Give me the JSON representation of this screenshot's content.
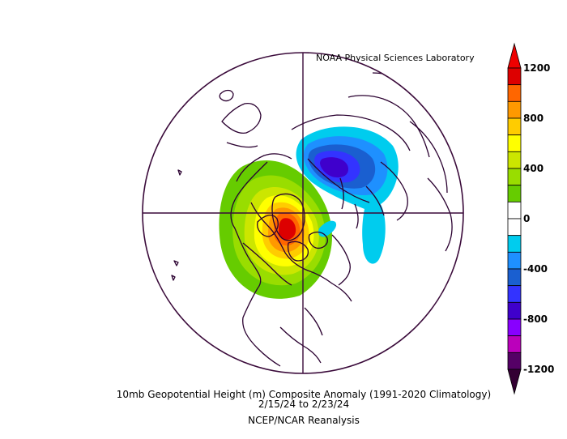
{
  "credit": "NOAA Physical Sciences Laboratory",
  "caption": {
    "line1": "10mb Geopotential Height (m) Composite Anomaly (1991-2020 Climatology)",
    "line2": "2/15/24   to 2/23/24",
    "line3": "NCEP/NCAR Reanalysis"
  },
  "colorbar": {
    "labels": [
      "1200",
      "800",
      "400",
      "0",
      "-400",
      "-800",
      "-1200"
    ],
    "bins": [
      {
        "upper": 1200,
        "color": "#dd0000"
      },
      {
        "upper": 1000,
        "color": "#ff6600"
      },
      {
        "upper": 900,
        "color": "#ff9900"
      },
      {
        "upper": 800,
        "color": "#ffcc00"
      },
      {
        "upper": 700,
        "color": "#ffff00"
      },
      {
        "upper": 600,
        "color": "#cce600"
      },
      {
        "upper": 500,
        "color": "#99dd00"
      },
      {
        "upper": 400,
        "color": "#66cc00"
      },
      {
        "upper": 200,
        "color": "#ffffff"
      },
      {
        "upper": 0,
        "color": "#ffffff"
      },
      {
        "upper": -200,
        "color": "#00ccee"
      },
      {
        "upper": -400,
        "color": "#1e90ff"
      },
      {
        "upper": -500,
        "color": "#1a5fd0"
      },
      {
        "upper": -600,
        "color": "#3333ff"
      },
      {
        "upper": -700,
        "color": "#3f00cc"
      },
      {
        "upper": -800,
        "color": "#8800ff"
      },
      {
        "upper": -1000,
        "color": "#bb00bb"
      },
      {
        "upper": -1200,
        "color": "#550066"
      }
    ],
    "top_arrow_color": "#ee0000",
    "bottom_arrow_color": "#330033"
  },
  "map_colors": {
    "outline": "#3a0a3a",
    "coast": "#2a0030"
  }
}
